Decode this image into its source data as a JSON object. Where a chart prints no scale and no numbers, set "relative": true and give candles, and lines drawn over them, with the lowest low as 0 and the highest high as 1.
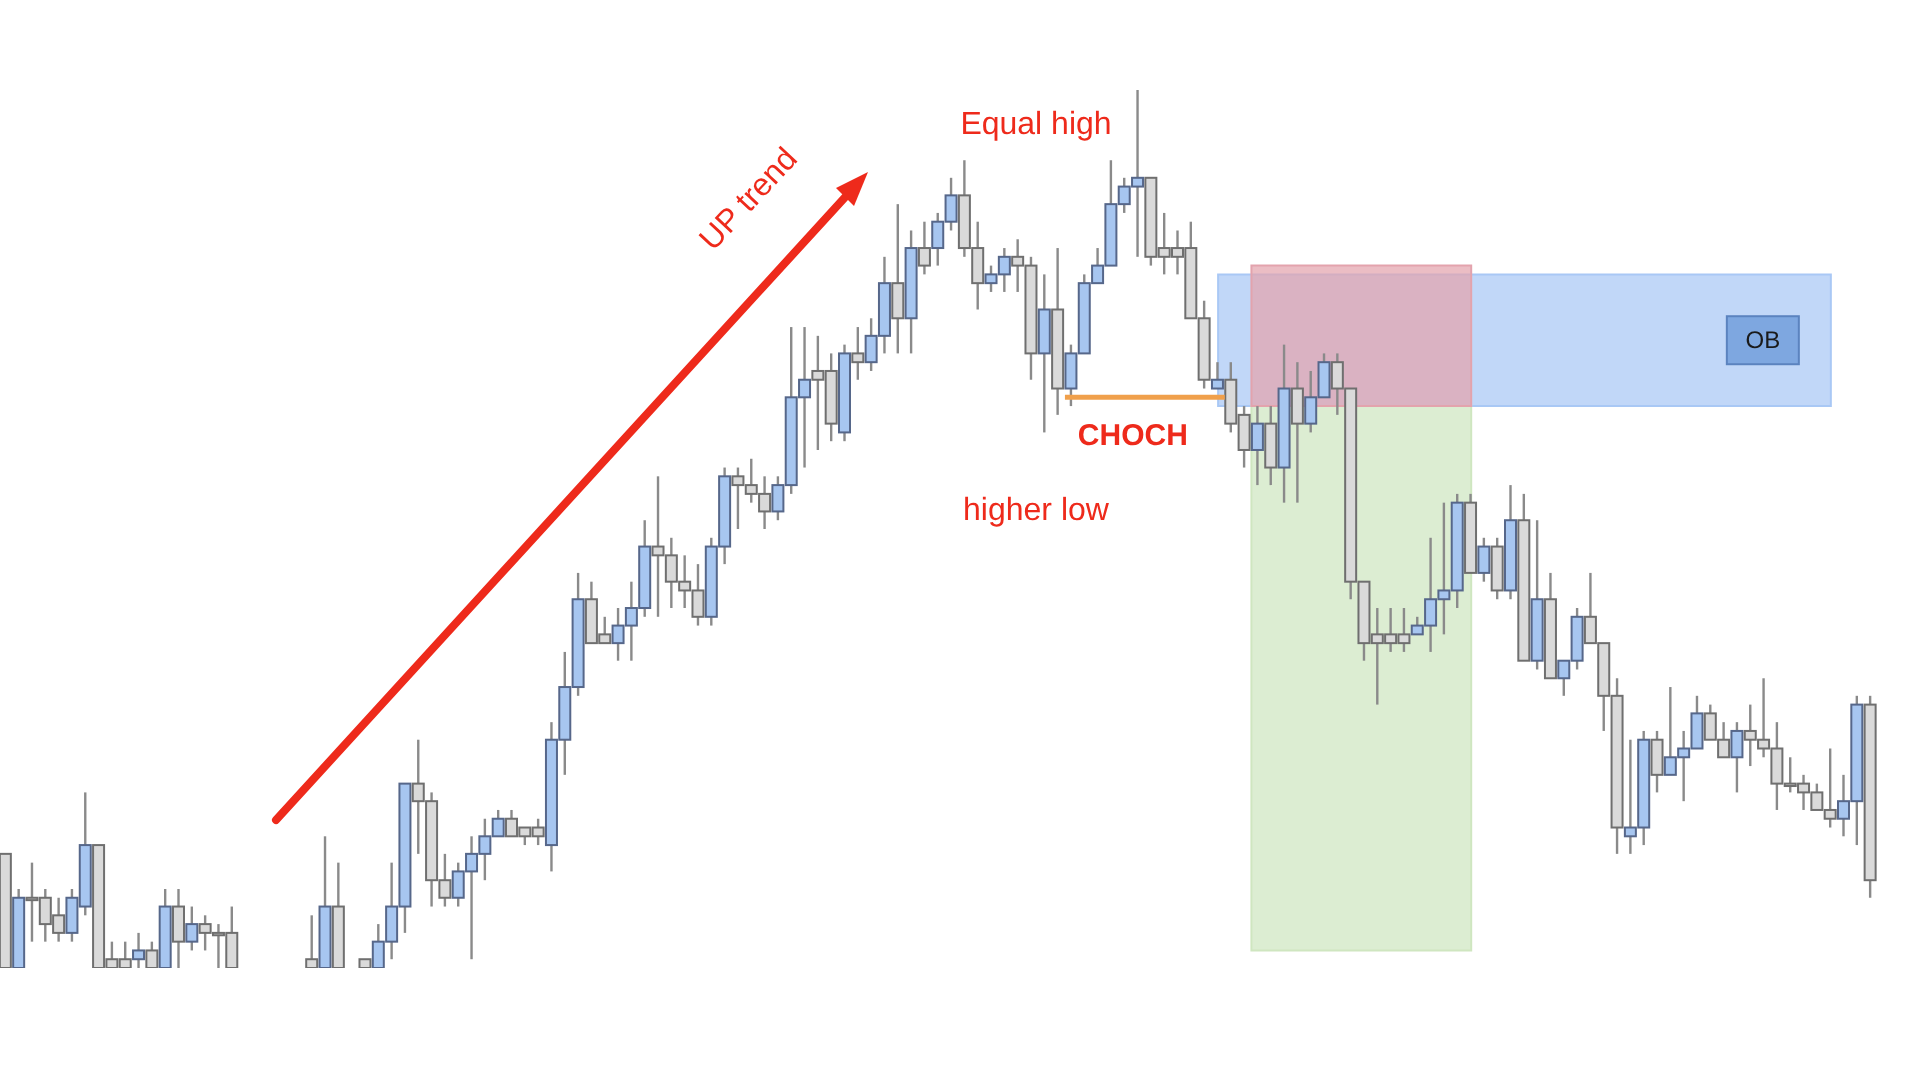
{
  "chart_data": {
    "type": "candlestick",
    "relative": true,
    "categories": [
      null,
      null,
      null,
      null,
      null,
      null,
      null,
      null,
      null,
      null,
      null,
      null,
      null,
      null,
      null,
      null,
      null,
      null,
      null,
      null,
      null,
      null,
      null,
      null,
      null,
      null,
      null,
      null,
      null,
      null,
      null,
      null,
      null,
      null,
      null,
      null,
      null,
      null,
      null,
      null,
      null,
      null,
      null,
      null,
      null,
      null,
      null,
      null,
      null,
      null,
      null,
      null,
      null,
      null,
      null,
      null,
      null,
      null,
      null,
      null,
      null,
      null,
      null,
      null,
      null,
      null,
      null,
      null,
      null,
      null,
      null,
      null,
      null,
      null,
      null,
      null,
      null,
      null,
      null,
      null,
      null,
      null,
      null,
      null,
      null,
      null,
      null,
      null,
      null,
      null,
      null,
      null,
      null,
      null,
      null,
      null,
      null,
      null,
      null,
      null,
      null,
      null,
      null,
      null,
      null,
      null,
      null,
      null,
      null,
      null,
      null,
      null,
      null,
      null,
      null,
      null,
      null,
      null,
      null,
      null,
      null,
      null,
      null,
      null,
      null,
      null,
      null,
      null,
      null,
      null,
      null,
      null,
      null,
      null,
      null,
      null,
      null,
      null,
      null,
      null,
      null
    ],
    "ohlc": [
      [
        0.13,
        0.13,
        0,
        0
      ],
      [
        0,
        0.09,
        0,
        0.08
      ],
      [
        0.08,
        0.12,
        0.03,
        0.08
      ],
      [
        0.08,
        0.09,
        0.03,
        0.05
      ],
      [
        0.06,
        0.08,
        0.03,
        0.04
      ],
      [
        0.04,
        0.09,
        0.03,
        0.08
      ],
      [
        0.07,
        0.2,
        0.06,
        0.14
      ],
      [
        0.14,
        0.14,
        0,
        0
      ],
      [
        0.01,
        0.03,
        0,
        0
      ],
      [
        0.01,
        0.03,
        0,
        0
      ],
      [
        0.01,
        0.04,
        0,
        0.02
      ],
      [
        0.02,
        0.03,
        0,
        0
      ],
      [
        0,
        0.09,
        0,
        0.07
      ],
      [
        0.07,
        0.09,
        0,
        0.03
      ],
      [
        0.03,
        0.07,
        0.02,
        0.05
      ],
      [
        0.05,
        0.06,
        0.02,
        0.04
      ],
      [
        0.04,
        0.05,
        0,
        0.04
      ],
      [
        0.04,
        0.07,
        0,
        0
      ],
      null,
      null,
      null,
      null,
      null,
      [
        0.01,
        0.06,
        0,
        0
      ],
      [
        0,
        0.15,
        0,
        0.07
      ],
      [
        0.07,
        0.12,
        0,
        0
      ],
      null,
      [
        0.01,
        0.01,
        0,
        0
      ],
      [
        0,
        0.05,
        0,
        0.03
      ],
      [
        0.03,
        0.12,
        0.01,
        0.07
      ],
      [
        0.07,
        0.21,
        0.04,
        0.21
      ],
      [
        0.21,
        0.26,
        0.13,
        0.19
      ],
      [
        0.19,
        0.2,
        0.07,
        0.1
      ],
      [
        0.1,
        0.13,
        0.07,
        0.08
      ],
      [
        0.08,
        0.12,
        0.07,
        0.11
      ],
      [
        0.11,
        0.15,
        0.01,
        0.13
      ],
      [
        0.13,
        0.17,
        0.1,
        0.15
      ],
      [
        0.15,
        0.18,
        0.15,
        0.17
      ],
      [
        0.17,
        0.18,
        0.15,
        0.15
      ],
      [
        0.16,
        0.16,
        0.14,
        0.15
      ],
      [
        0.16,
        0.17,
        0.14,
        0.15
      ],
      [
        0.14,
        0.28,
        0.11,
        0.26
      ],
      [
        0.26,
        0.36,
        0.22,
        0.32
      ],
      [
        0.32,
        0.45,
        0.31,
        0.42
      ],
      [
        0.42,
        0.44,
        0.37,
        0.37
      ],
      [
        0.38,
        0.4,
        0.37,
        0.37
      ],
      [
        0.37,
        0.41,
        0.35,
        0.39
      ],
      [
        0.39,
        0.44,
        0.35,
        0.41
      ],
      [
        0.41,
        0.51,
        0.4,
        0.48
      ],
      [
        0.48,
        0.56,
        0.4,
        0.47
      ],
      [
        0.47,
        0.49,
        0.41,
        0.44
      ],
      [
        0.44,
        0.47,
        0.41,
        0.43
      ],
      [
        0.43,
        0.46,
        0.39,
        0.4
      ],
      [
        0.4,
        0.49,
        0.39,
        0.48
      ],
      [
        0.48,
        0.57,
        0.46,
        0.56
      ],
      [
        0.56,
        0.57,
        0.5,
        0.55
      ],
      [
        0.55,
        0.58,
        0.53,
        0.54
      ],
      [
        0.54,
        0.56,
        0.5,
        0.52
      ],
      [
        0.52,
        0.56,
        0.51,
        0.55
      ],
      [
        0.55,
        0.73,
        0.54,
        0.65
      ],
      [
        0.65,
        0.73,
        0.57,
        0.67
      ],
      [
        0.68,
        0.72,
        0.59,
        0.67
      ],
      [
        0.68,
        0.7,
        0.6,
        0.62
      ],
      [
        0.61,
        0.71,
        0.6,
        0.7
      ],
      [
        0.7,
        0.73,
        0.67,
        0.69
      ],
      [
        0.69,
        0.74,
        0.68,
        0.72
      ],
      [
        0.72,
        0.81,
        0.7,
        0.78
      ],
      [
        0.78,
        0.87,
        0.7,
        0.74
      ],
      [
        0.74,
        0.84,
        0.7,
        0.82
      ],
      [
        0.82,
        0.85,
        0.79,
        0.8
      ],
      [
        0.82,
        0.86,
        0.8,
        0.85
      ],
      [
        0.85,
        0.9,
        0.84,
        0.88
      ],
      [
        0.88,
        0.92,
        0.81,
        0.82
      ],
      [
        0.82,
        0.85,
        0.75,
        0.78
      ],
      [
        0.78,
        0.8,
        0.77,
        0.79
      ],
      [
        0.79,
        0.82,
        0.77,
        0.81
      ],
      [
        0.81,
        0.83,
        0.77,
        0.8
      ],
      [
        0.8,
        0.81,
        0.67,
        0.7
      ],
      [
        0.7,
        0.79,
        0.61,
        0.75
      ],
      [
        0.75,
        0.82,
        0.63,
        0.66
      ],
      [
        0.66,
        0.71,
        0.64,
        0.7
      ],
      [
        0.7,
        0.79,
        0.7,
        0.78
      ],
      [
        0.78,
        0.82,
        0.78,
        0.8
      ],
      [
        0.8,
        0.92,
        0.8,
        0.87
      ],
      [
        0.87,
        0.9,
        0.86,
        0.89
      ],
      [
        0.89,
        1,
        0.81,
        0.9
      ],
      [
        0.9,
        0.9,
        0.8,
        0.81
      ],
      [
        0.82,
        0.86,
        0.79,
        0.81
      ],
      [
        0.82,
        0.84,
        0.79,
        0.81
      ],
      [
        0.82,
        0.85,
        0.74,
        0.74
      ],
      [
        0.74,
        0.76,
        0.66,
        0.67
      ],
      [
        0.66,
        0.69,
        0.66,
        0.67
      ],
      [
        0.67,
        0.69,
        0.61,
        0.62
      ],
      [
        0.63,
        0.64,
        0.57,
        0.59
      ],
      [
        0.59,
        0.64,
        0.55,
        0.62
      ],
      [
        0.62,
        0.64,
        0.55,
        0.57
      ],
      [
        0.57,
        0.71,
        0.53,
        0.66
      ],
      [
        0.66,
        0.69,
        0.53,
        0.62
      ],
      [
        0.62,
        0.68,
        0.61,
        0.65
      ],
      [
        0.65,
        0.7,
        0.65,
        0.69
      ],
      [
        0.69,
        0.7,
        0.63,
        0.66
      ],
      [
        0.66,
        0.66,
        0.42,
        0.44
      ],
      [
        0.44,
        0.44,
        0.35,
        0.37
      ],
      [
        0.38,
        0.41,
        0.3,
        0.37
      ],
      [
        0.38,
        0.41,
        0.36,
        0.37
      ],
      [
        0.38,
        0.41,
        0.36,
        0.37
      ],
      [
        0.38,
        0.4,
        0.38,
        0.39
      ],
      [
        0.39,
        0.49,
        0.36,
        0.42
      ],
      [
        0.42,
        0.53,
        0.38,
        0.43
      ],
      [
        0.43,
        0.54,
        0.41,
        0.53
      ],
      [
        0.53,
        0.54,
        0.45,
        0.45
      ],
      [
        0.45,
        0.49,
        0.44,
        0.48
      ],
      [
        0.48,
        0.49,
        0.42,
        0.43
      ],
      [
        0.43,
        0.55,
        0.42,
        0.51
      ],
      [
        0.51,
        0.54,
        0.35,
        0.35
      ],
      [
        0.35,
        0.51,
        0.34,
        0.42
      ],
      [
        0.42,
        0.45,
        0.33,
        0.33
      ],
      [
        0.33,
        0.35,
        0.31,
        0.35
      ],
      [
        0.35,
        0.41,
        0.34,
        0.4
      ],
      [
        0.4,
        0.45,
        0.37,
        0.37
      ],
      [
        0.37,
        0.37,
        0.27,
        0.31
      ],
      [
        0.31,
        0.33,
        0.13,
        0.16
      ],
      [
        0.15,
        0.26,
        0.13,
        0.16
      ],
      [
        0.16,
        0.27,
        0.14,
        0.26
      ],
      [
        0.26,
        0.27,
        0.2,
        0.22
      ],
      [
        0.22,
        0.32,
        0.22,
        0.24
      ],
      [
        0.24,
        0.27,
        0.19,
        0.25
      ],
      [
        0.25,
        0.31,
        0.25,
        0.29
      ],
      [
        0.29,
        0.3,
        0.26,
        0.26
      ],
      [
        0.26,
        0.28,
        0.24,
        0.24
      ],
      [
        0.24,
        0.28,
        0.2,
        0.27
      ],
      [
        0.27,
        0.3,
        0.23,
        0.26
      ],
      [
        0.26,
        0.33,
        0.24,
        0.25
      ],
      [
        0.25,
        0.28,
        0.18,
        0.21
      ],
      [
        0.21,
        0.24,
        0.2,
        0.21
      ],
      [
        0.21,
        0.22,
        0.18,
        0.2
      ],
      [
        0.2,
        0.21,
        0.18,
        0.18
      ],
      [
        0.18,
        0.25,
        0.16,
        0.17
      ],
      [
        0.17,
        0.22,
        0.15,
        0.19
      ],
      [
        0.19,
        0.31,
        0.14,
        0.3
      ],
      [
        0.3,
        0.31,
        0.08,
        0.1
      ]
    ],
    "bands": [
      {
        "axis": "y",
        "from": 0.64,
        "to": 0.79,
        "color": "#a9c8f5",
        "label": "OB"
      },
      {
        "axis": "y",
        "from": 0.02,
        "to": 0.64,
        "color": "#cfe6c0"
      },
      {
        "axis": "y",
        "from": 0.64,
        "to": 0.8,
        "color": "#e3a3ad"
      }
    ],
    "ref_lines": [
      {
        "axis": "y",
        "value": 0.65,
        "color": "#f0a04b",
        "label": "CHOCH"
      }
    ],
    "annotations": [
      "UP trend",
      "Equal high",
      "higher low"
    ]
  }
}
